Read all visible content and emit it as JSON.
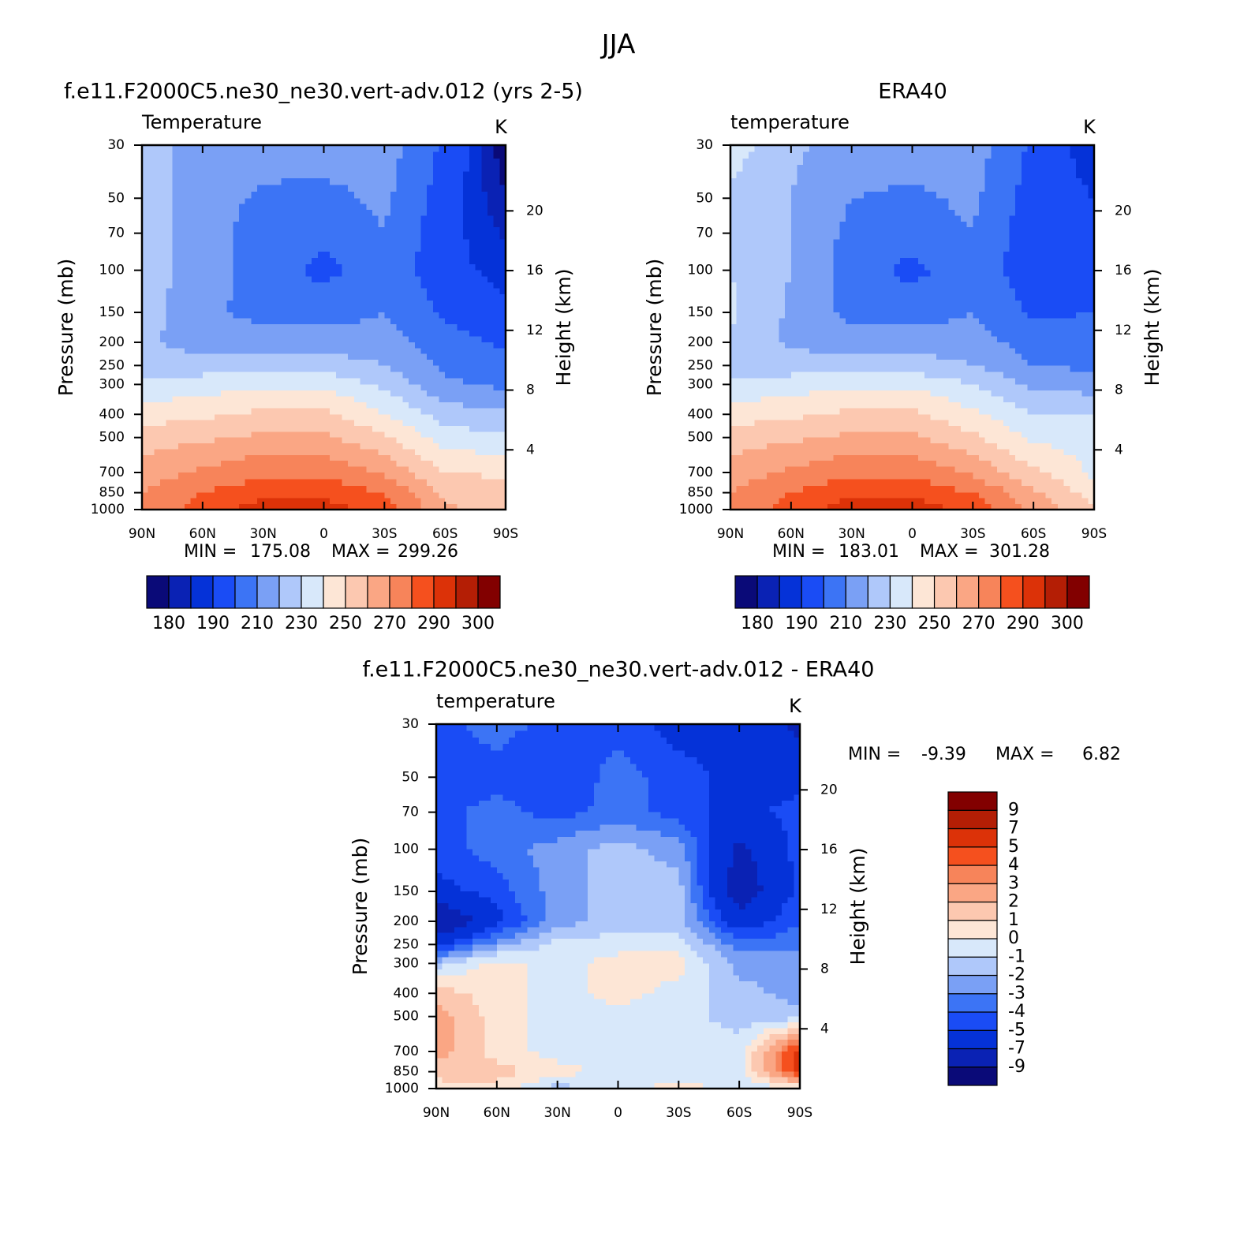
{
  "title": "JJA",
  "chart_data": [
    {
      "type": "contour",
      "title": "f.e11.F2000C5.ne30_ne30.vert-adv.012 (yrs 2-5)",
      "subtitle": "Temperature",
      "units": "K",
      "ylabel": "Pressure (mb)",
      "y2label": "Height (km)",
      "x": [
        90,
        60,
        30,
        0,
        -30,
        -60,
        -90
      ],
      "y": [
        30,
        50,
        70,
        100,
        150,
        200,
        250,
        300,
        400,
        500,
        700,
        850,
        1000
      ],
      "values": [
        [
          225,
          215,
          215,
          215,
          215,
          198,
          176
        ],
        [
          225,
          215,
          208,
          207,
          212,
          195,
          180
        ],
        [
          225,
          215,
          205,
          203,
          210,
          193,
          184
        ],
        [
          225,
          215,
          205,
          197,
          207,
          193,
          187
        ],
        [
          225,
          212,
          207,
          205,
          210,
          198,
          192
        ],
        [
          222,
          215,
          215,
          215,
          215,
          205,
          198
        ],
        [
          225,
          225,
          225,
          225,
          220,
          208,
          205
        ],
        [
          232,
          235,
          238,
          238,
          228,
          212,
          208
        ],
        [
          245,
          248,
          252,
          252,
          240,
          225,
          222
        ],
        [
          255,
          258,
          262,
          262,
          252,
          235,
          232
        ],
        [
          265,
          272,
          278,
          278,
          268,
          250,
          248
        ],
        [
          270,
          280,
          286,
          286,
          280,
          258,
          255
        ],
        [
          272,
          285,
          296,
          296,
          285,
          262,
          255
        ]
      ],
      "xlim": [
        90,
        -90
      ],
      "xticks": [
        {
          "value": 90,
          "label": "90N"
        },
        {
          "value": 60,
          "label": "60N"
        },
        {
          "value": 30,
          "label": "30N"
        },
        0,
        {
          "value": -30,
          "label": "30S"
        },
        {
          "value": -60,
          "label": "60S"
        },
        {
          "value": -90,
          "label": "90S"
        }
      ],
      "ylim": [
        1000,
        30
      ],
      "log_y": true,
      "yticks": [
        30,
        50,
        70,
        100,
        150,
        200,
        250,
        300,
        400,
        500,
        700,
        850,
        1000
      ],
      "y2lim": [
        0,
        24.4
      ],
      "y2ticks": [
        4,
        8,
        12,
        16,
        20
      ],
      "levels": [
        180,
        185,
        190,
        200,
        210,
        220,
        230,
        240,
        250,
        260,
        270,
        280,
        290,
        295,
        300
      ],
      "colors": [
        "#0a0a78",
        "#0a22b4",
        "#0532d8",
        "#1a4cf5",
        "#3c74f5",
        "#7aa0f5",
        "#afc8fa",
        "#d8e8fa",
        "#fde6d6",
        "#fcc8b0",
        "#faa684",
        "#f7845a",
        "#f5501e",
        "#dc3208",
        "#b41e05",
        "#820000"
      ],
      "colorbar": "horizontal",
      "colorbar_ticks": [
        180,
        190,
        210,
        230,
        250,
        270,
        290,
        300
      ],
      "min_label": "MIN =",
      "min": 175.08,
      "max_label": "MAX =",
      "max": 299.26
    },
    {
      "type": "contour",
      "title": "ERA40",
      "subtitle": "temperature",
      "units": "K",
      "ylabel": "Pressure (mb)",
      "y2label": "Height (km)",
      "x": [
        90,
        60,
        30,
        0,
        -30,
        -60,
        -90
      ],
      "y": [
        30,
        50,
        70,
        100,
        150,
        200,
        250,
        300,
        400,
        500,
        700,
        850,
        1000
      ],
      "values": [
        [
          235,
          222,
          215,
          215,
          215,
          198,
          185
        ],
        [
          228,
          220,
          210,
          208,
          212,
          195,
          190
        ],
        [
          228,
          220,
          207,
          205,
          210,
          193,
          192
        ],
        [
          230,
          220,
          205,
          197,
          207,
          193,
          195
        ],
        [
          232,
          218,
          207,
          205,
          210,
          198,
          200
        ],
        [
          228,
          218,
          215,
          215,
          215,
          205,
          205
        ],
        [
          225,
          225,
          225,
          225,
          220,
          210,
          208
        ],
        [
          232,
          235,
          238,
          238,
          230,
          218,
          215
        ],
        [
          245,
          248,
          252,
          252,
          242,
          230,
          230
        ],
        [
          255,
          258,
          262,
          262,
          252,
          238,
          235
        ],
        [
          265,
          272,
          278,
          278,
          268,
          252,
          238
        ],
        [
          270,
          280,
          287,
          287,
          280,
          262,
          245
        ],
        [
          272,
          285,
          296,
          296,
          287,
          268,
          250
        ]
      ],
      "xlim": [
        90,
        -90
      ],
      "xticks": [
        {
          "value": 90,
          "label": "90N"
        },
        {
          "value": 60,
          "label": "60N"
        },
        {
          "value": 30,
          "label": "30N"
        },
        0,
        {
          "value": -30,
          "label": "30S"
        },
        {
          "value": -60,
          "label": "60S"
        },
        {
          "value": -90,
          "label": "90S"
        }
      ],
      "ylim": [
        1000,
        30
      ],
      "log_y": true,
      "yticks": [
        30,
        50,
        70,
        100,
        150,
        200,
        250,
        300,
        400,
        500,
        700,
        850,
        1000
      ],
      "y2lim": [
        0,
        24.4
      ],
      "y2ticks": [
        4,
        8,
        12,
        16,
        20
      ],
      "levels": [
        180,
        185,
        190,
        200,
        210,
        220,
        230,
        240,
        250,
        260,
        270,
        280,
        290,
        295,
        300
      ],
      "colors": [
        "#0a0a78",
        "#0a22b4",
        "#0532d8",
        "#1a4cf5",
        "#3c74f5",
        "#7aa0f5",
        "#afc8fa",
        "#d8e8fa",
        "#fde6d6",
        "#fcc8b0",
        "#faa684",
        "#f7845a",
        "#f5501e",
        "#dc3208",
        "#b41e05",
        "#820000"
      ],
      "colorbar": "horizontal",
      "colorbar_ticks": [
        180,
        190,
        210,
        230,
        250,
        270,
        290,
        300
      ],
      "min_label": "MIN =",
      "min": 183.01,
      "max_label": "MAX =",
      "max": 301.28
    },
    {
      "type": "contour",
      "title": "f.e11.F2000C5.ne30_ne30.vert-adv.012 - ERA40",
      "subtitle": "temperature",
      "units": "K",
      "ylabel": "Pressure (mb)",
      "y2label": "Height (km)",
      "x": [
        90,
        60,
        30,
        0,
        -30,
        -60,
        -90
      ],
      "y": [
        30,
        50,
        70,
        100,
        150,
        200,
        250,
        300,
        400,
        500,
        700,
        850,
        1000
      ],
      "values": [
        [
          -4.5,
          -3.5,
          -4.5,
          -4.5,
          -5.5,
          -5.5,
          -7.5
        ],
        [
          -4.5,
          -4.5,
          -5,
          -3.5,
          -4.5,
          -5.5,
          -5.5
        ],
        [
          -4.5,
          -3.5,
          -4.5,
          -3.5,
          -4.5,
          -5.5,
          -4.5
        ],
        [
          -4.5,
          -3.5,
          -2.5,
          -1.5,
          -2.5,
          -7.5,
          -4.5
        ],
        [
          -5.5,
          -4.5,
          -2.5,
          -1.5,
          -1.5,
          -8.5,
          -4.5
        ],
        [
          -9.5,
          -5.5,
          -2.5,
          -1.5,
          -1.5,
          -6,
          -4
        ],
        [
          -5.5,
          -2.5,
          -0.5,
          -0.5,
          -0.5,
          -3.5,
          -3.5
        ],
        [
          -1.5,
          0.5,
          -0.5,
          0.5,
          0.5,
          -2.5,
          -2.5
        ],
        [
          1.5,
          0.5,
          -0.5,
          0.5,
          -0.5,
          -1.5,
          -2.5
        ],
        [
          2.5,
          0.5,
          -0.5,
          -0.5,
          -0.5,
          -1.5,
          -1.5
        ],
        [
          2.5,
          0.5,
          -0.5,
          -0.5,
          -0.5,
          -0.5,
          5.5
        ],
        [
          1.5,
          1.5,
          0.5,
          -0.5,
          -0.5,
          -0.5,
          5.5
        ],
        [
          0.5,
          0.5,
          -1.5,
          -0.5,
          0.5,
          -0.5,
          -0.5
        ]
      ],
      "xlim": [
        90,
        -90
      ],
      "xticks": [
        {
          "value": 90,
          "label": "90N"
        },
        {
          "value": 60,
          "label": "60N"
        },
        {
          "value": 30,
          "label": "30N"
        },
        0,
        {
          "value": -30,
          "label": "30S"
        },
        {
          "value": -60,
          "label": "60S"
        },
        {
          "value": -90,
          "label": "90S"
        }
      ],
      "ylim": [
        1000,
        30
      ],
      "log_y": true,
      "yticks": [
        30,
        50,
        70,
        100,
        150,
        200,
        250,
        300,
        400,
        500,
        700,
        850,
        1000
      ],
      "y2lim": [
        0,
        24.4
      ],
      "y2ticks": [
        4,
        8,
        12,
        16,
        20
      ],
      "levels": [
        -9,
        -7,
        -5,
        -4,
        -3,
        -2,
        -1,
        0,
        1,
        2,
        3,
        4,
        5,
        7,
        9
      ],
      "colors": [
        "#0a0a78",
        "#0a22b4",
        "#0532d8",
        "#1a4cf5",
        "#3c74f5",
        "#7aa0f5",
        "#afc8fa",
        "#d8e8fa",
        "#fde6d6",
        "#fcc8b0",
        "#faa684",
        "#f7845a",
        "#f5501e",
        "#dc3208",
        "#b41e05",
        "#820000"
      ],
      "colorbar": "vertical",
      "colorbar_ticks": [
        -9,
        -7,
        -5,
        -4,
        -3,
        -2,
        -1,
        0,
        1,
        2,
        3,
        4,
        5,
        7,
        9
      ],
      "min_label": "MIN =",
      "min": -9.39,
      "max_label": "MAX =",
      "max": 6.82
    }
  ]
}
